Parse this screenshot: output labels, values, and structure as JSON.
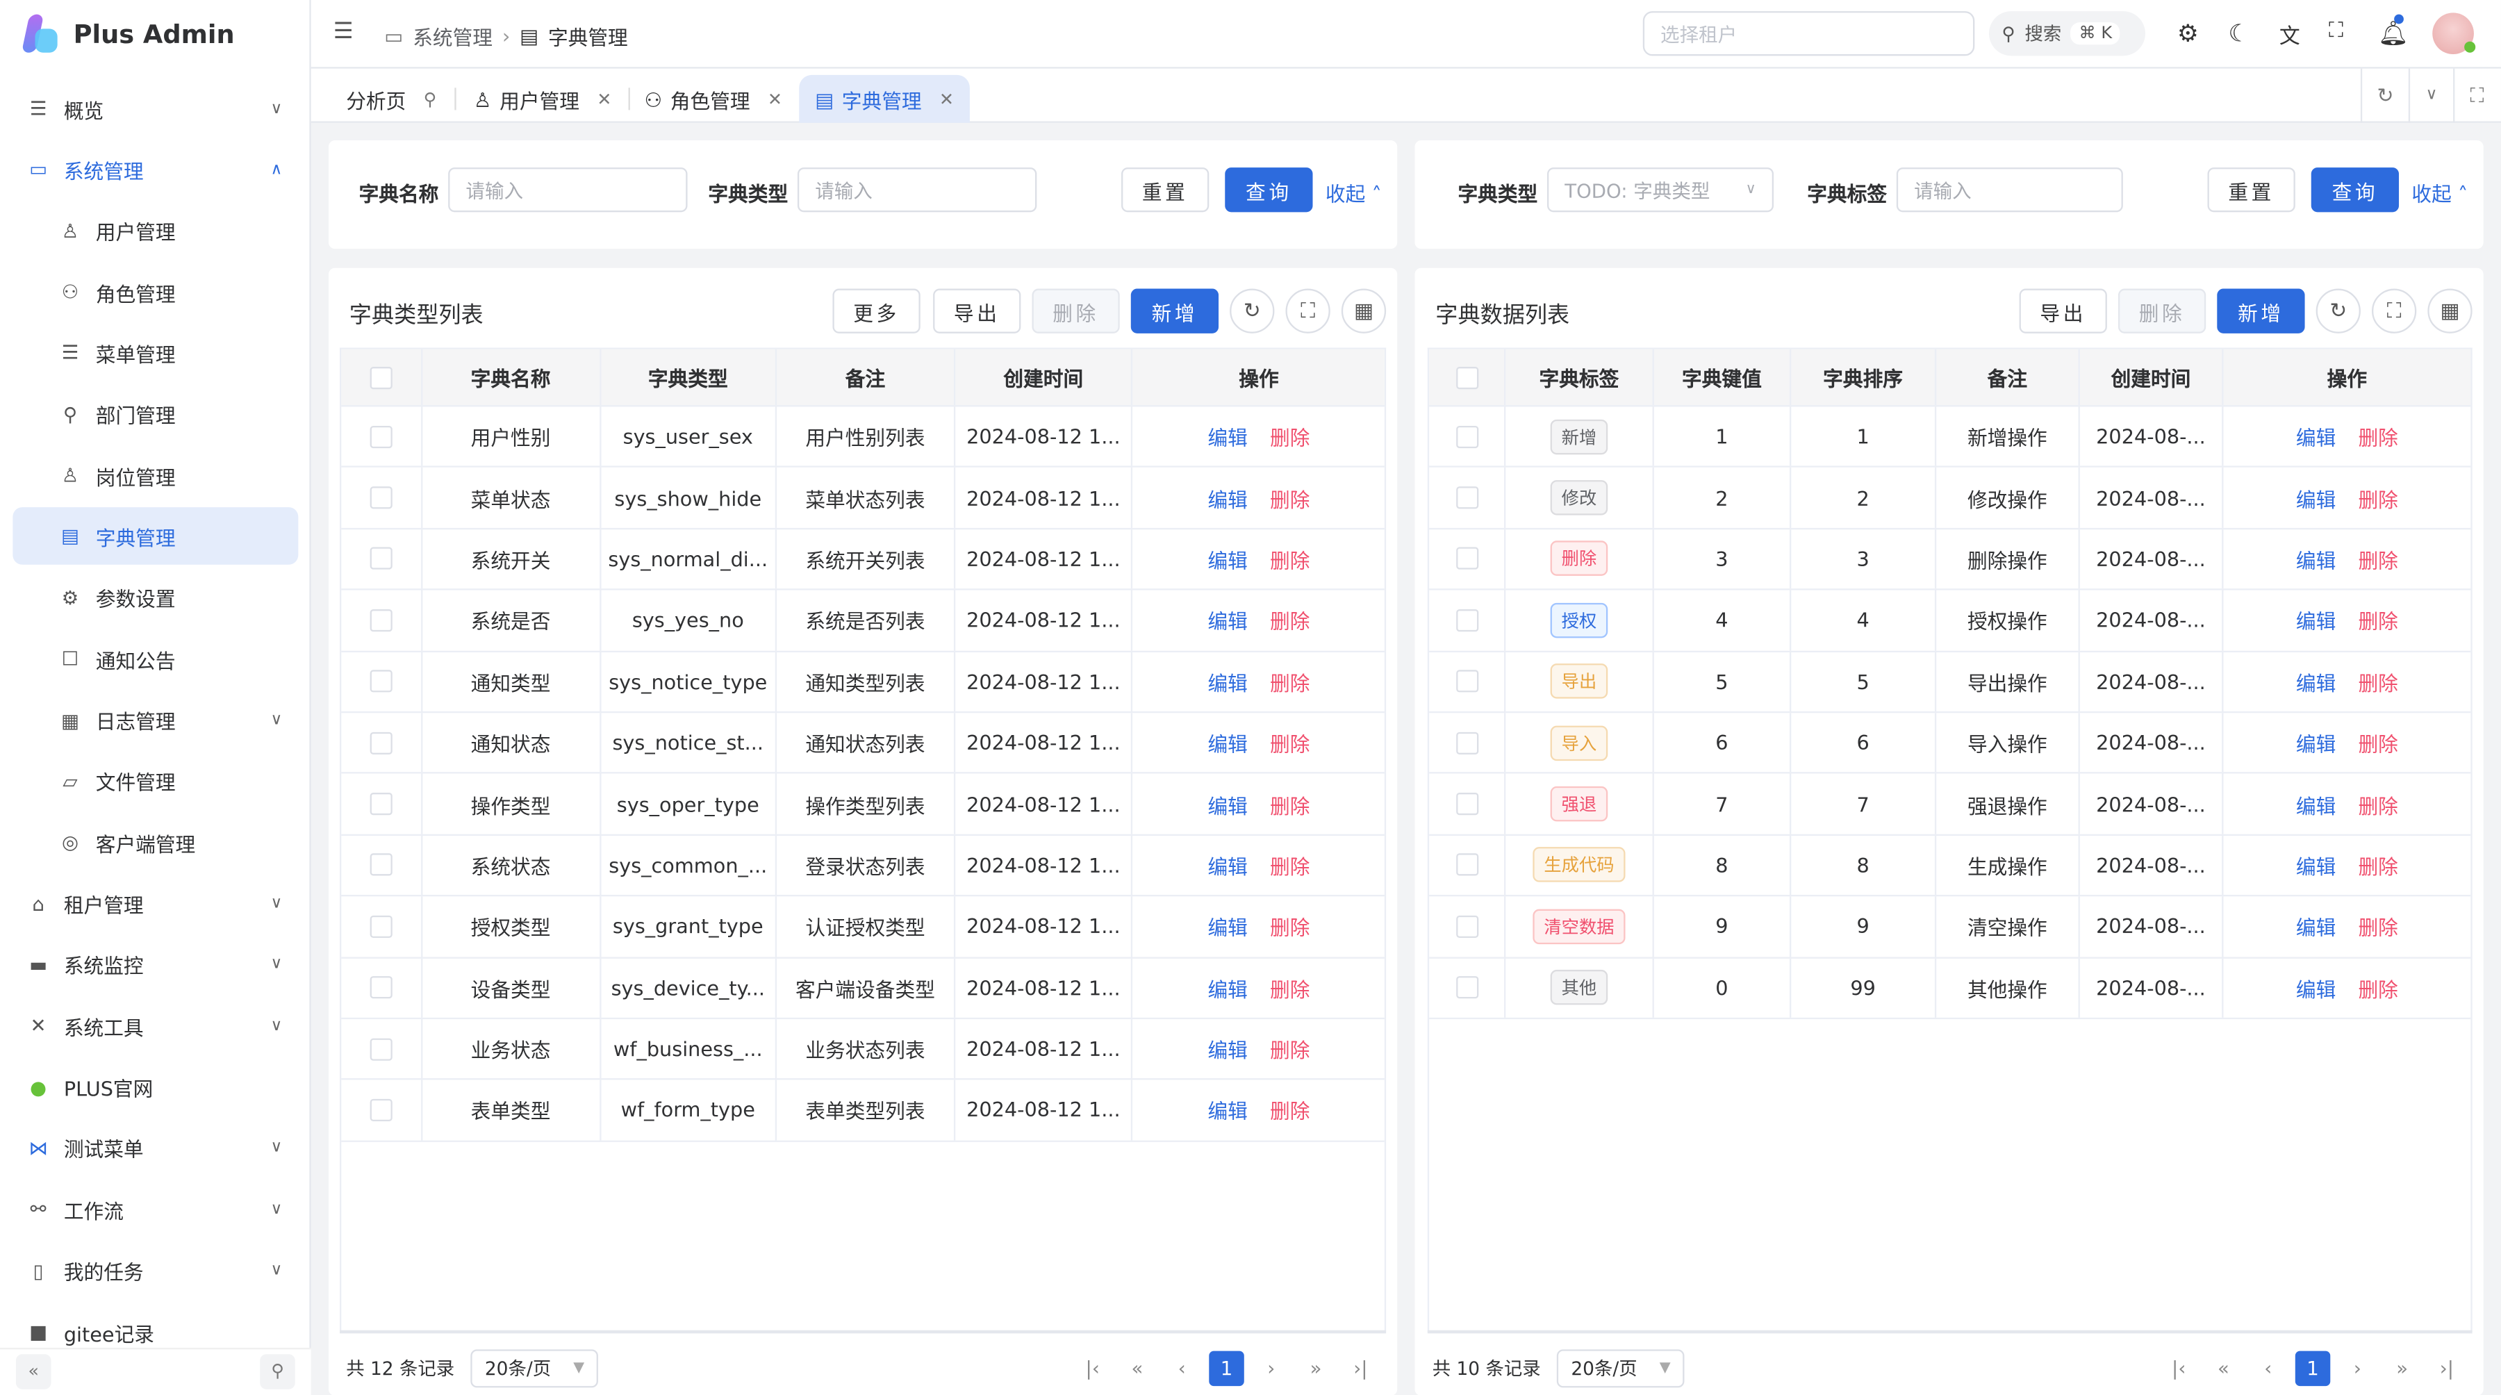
{
  "app": {
    "name": "Plus Admin"
  },
  "sidebar": {
    "items": [
      {
        "label": "概览",
        "icon": "menu-icon",
        "glyph": "☰",
        "level": 0,
        "chevron": "down"
      },
      {
        "label": "系统管理",
        "icon": "monitor-icon",
        "glyph": "▭",
        "level": 0,
        "chevron": "up",
        "open": true
      },
      {
        "label": "用户管理",
        "icon": "user-icon",
        "glyph": "♙",
        "level": 1
      },
      {
        "label": "角色管理",
        "icon": "role-icon",
        "glyph": "⚇",
        "level": 1
      },
      {
        "label": "菜单管理",
        "icon": "menu-icon",
        "glyph": "☰",
        "level": 1
      },
      {
        "label": "部门管理",
        "icon": "tree-icon",
        "glyph": "⚲",
        "level": 1
      },
      {
        "label": "岗位管理",
        "icon": "post-icon",
        "glyph": "♙",
        "level": 1
      },
      {
        "label": "字典管理",
        "icon": "book-icon",
        "glyph": "▤",
        "level": 1,
        "active": true
      },
      {
        "label": "参数设置",
        "icon": "gear-icon",
        "glyph": "⚙",
        "level": 1
      },
      {
        "label": "通知公告",
        "icon": "notice-icon",
        "glyph": "☐",
        "level": 1
      },
      {
        "label": "日志管理",
        "icon": "log-icon",
        "glyph": "▦",
        "level": 1,
        "chevron": "down"
      },
      {
        "label": "文件管理",
        "icon": "folder-icon",
        "glyph": "▱",
        "level": 1
      },
      {
        "label": "客户端管理",
        "icon": "client-icon",
        "glyph": "◎",
        "level": 1
      },
      {
        "label": "租户管理",
        "icon": "home-icon",
        "glyph": "⌂",
        "level": 0,
        "chevron": "down"
      },
      {
        "label": "系统监控",
        "icon": "monitor-icon",
        "glyph": "▬",
        "level": 0,
        "chevron": "down"
      },
      {
        "label": "系统工具",
        "icon": "tools-icon",
        "glyph": "✕",
        "level": 0,
        "chevron": "down"
      },
      {
        "label": "PLUS官网",
        "icon": "plus-circle-icon",
        "glyph": "●",
        "level": 0
      },
      {
        "label": "测试菜单",
        "icon": "vscode-icon",
        "glyph": "⋈",
        "level": 0,
        "chevron": "down"
      },
      {
        "label": "工作流",
        "icon": "flow-icon",
        "glyph": "⚯",
        "level": 0,
        "chevron": "down"
      },
      {
        "label": "我的任务",
        "icon": "task-icon",
        "glyph": "▯",
        "level": 0,
        "chevron": "down"
      },
      {
        "label": "gitee记录",
        "icon": "gitee-icon",
        "glyph": "■",
        "level": 0
      }
    ]
  },
  "header": {
    "breadcrumb": [
      "系统管理",
      "字典管理"
    ],
    "tenant_placeholder": "选择租户",
    "search_label": "搜索",
    "search_shortcut": "⌘ K"
  },
  "tabs": [
    {
      "label": "分析页",
      "pinned": true
    },
    {
      "label": "用户管理"
    },
    {
      "label": "角色管理"
    },
    {
      "label": "字典管理",
      "active": true
    }
  ],
  "left_search": {
    "name_label": "字典名称",
    "name_placeholder": "请输入",
    "type_label": "字典类型",
    "type_placeholder": "请输入",
    "reset": "重置",
    "query": "查询",
    "collapse": "收起"
  },
  "right_search": {
    "type_label": "字典类型",
    "type_placeholder": "TODO: 字典类型",
    "tag_label": "字典标签",
    "tag_placeholder": "请输入",
    "reset": "重置",
    "query": "查询",
    "collapse": "收起"
  },
  "left_table": {
    "title": "字典类型列表",
    "buttons": {
      "more": "更多",
      "export": "导出",
      "delete": "删除",
      "add": "新增"
    },
    "columns": [
      "字典名称",
      "字典类型",
      "备注",
      "创建时间",
      "操作"
    ],
    "rows": [
      [
        "用户性别",
        "sys_user_sex",
        "用户性别列表",
        "2024-08-12 1..."
      ],
      [
        "菜单状态",
        "sys_show_hide",
        "菜单状态列表",
        "2024-08-12 1..."
      ],
      [
        "系统开关",
        "sys_normal_di...",
        "系统开关列表",
        "2024-08-12 1..."
      ],
      [
        "系统是否",
        "sys_yes_no",
        "系统是否列表",
        "2024-08-12 1..."
      ],
      [
        "通知类型",
        "sys_notice_type",
        "通知类型列表",
        "2024-08-12 1..."
      ],
      [
        "通知状态",
        "sys_notice_st...",
        "通知状态列表",
        "2024-08-12 1..."
      ],
      [
        "操作类型",
        "sys_oper_type",
        "操作类型列表",
        "2024-08-12 1..."
      ],
      [
        "系统状态",
        "sys_common_...",
        "登录状态列表",
        "2024-08-12 1..."
      ],
      [
        "授权类型",
        "sys_grant_type",
        "认证授权类型",
        "2024-08-12 1..."
      ],
      [
        "设备类型",
        "sys_device_ty...",
        "客户端设备类型",
        "2024-08-12 1..."
      ],
      [
        "业务状态",
        "wf_business_...",
        "业务状态列表",
        "2024-08-12 1..."
      ],
      [
        "表单类型",
        "wf_form_type",
        "表单类型列表",
        "2024-08-12 1..."
      ]
    ],
    "edit": "编辑",
    "del": "删除",
    "total": "共 12 条记录",
    "page_size": "20条/页",
    "page": "1"
  },
  "right_table": {
    "title": "字典数据列表",
    "buttons": {
      "export": "导出",
      "delete": "删除",
      "add": "新增"
    },
    "columns": [
      "字典标签",
      "字典键值",
      "字典排序",
      "备注",
      "创建时间",
      "操作"
    ],
    "rows": [
      {
        "tag": "新增",
        "style": "default",
        "value": "1",
        "sort": "1",
        "remark": "新增操作",
        "time": "2024-08-..."
      },
      {
        "tag": "修改",
        "style": "default",
        "value": "2",
        "sort": "2",
        "remark": "修改操作",
        "time": "2024-08-..."
      },
      {
        "tag": "删除",
        "style": "danger",
        "value": "3",
        "sort": "3",
        "remark": "删除操作",
        "time": "2024-08-..."
      },
      {
        "tag": "授权",
        "style": "primary",
        "value": "4",
        "sort": "4",
        "remark": "授权操作",
        "time": "2024-08-..."
      },
      {
        "tag": "导出",
        "style": "warning",
        "value": "5",
        "sort": "5",
        "remark": "导出操作",
        "time": "2024-08-..."
      },
      {
        "tag": "导入",
        "style": "warning",
        "value": "6",
        "sort": "6",
        "remark": "导入操作",
        "time": "2024-08-..."
      },
      {
        "tag": "强退",
        "style": "danger",
        "value": "7",
        "sort": "7",
        "remark": "强退操作",
        "time": "2024-08-..."
      },
      {
        "tag": "生成代码",
        "style": "warning",
        "value": "8",
        "sort": "8",
        "remark": "生成操作",
        "time": "2024-08-..."
      },
      {
        "tag": "清空数据",
        "style": "danger",
        "value": "9",
        "sort": "9",
        "remark": "清空操作",
        "time": "2024-08-..."
      },
      {
        "tag": "其他",
        "style": "default",
        "value": "0",
        "sort": "99",
        "remark": "其他操作",
        "time": "2024-08-..."
      }
    ],
    "edit": "编辑",
    "del": "删除",
    "total": "共 10 条记录",
    "page_size": "20条/页",
    "page": "1"
  },
  "colors": {
    "primary": "#2d6bdd",
    "danger": "#f0506e",
    "warning": "#e6a23c"
  }
}
